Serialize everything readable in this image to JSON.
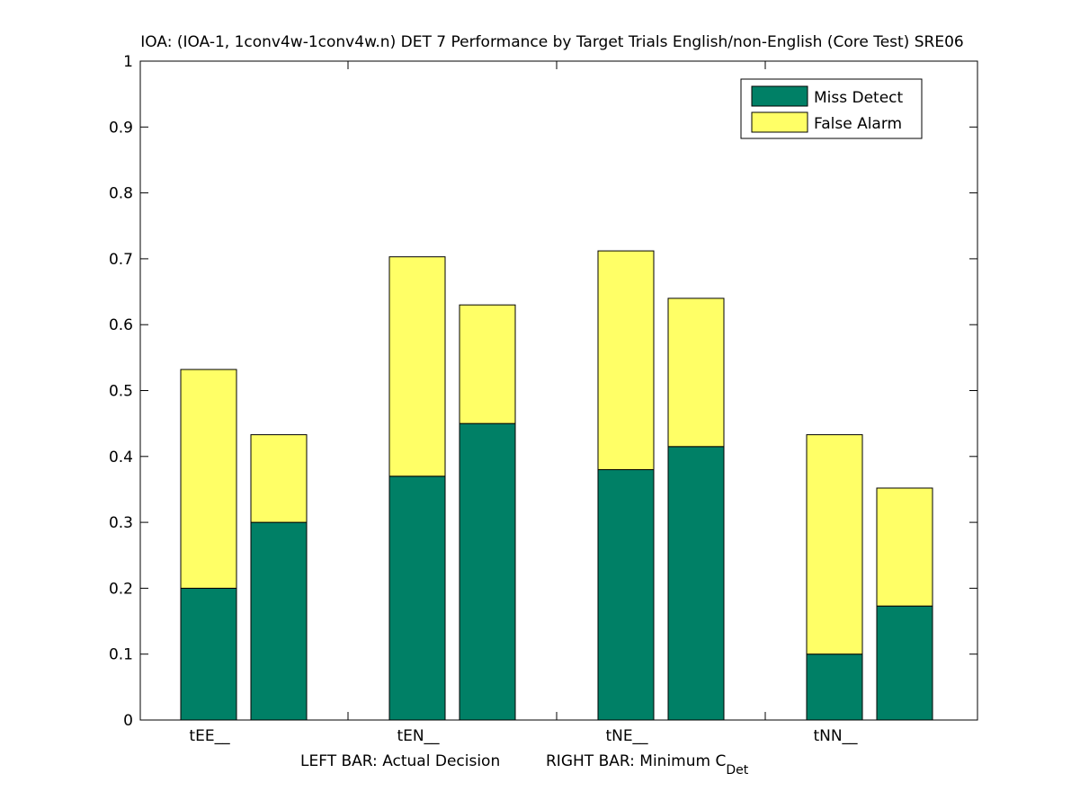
{
  "chart_data": {
    "type": "bar",
    "stacked": true,
    "title": "IOA: (IOA-1, 1conv4w-1conv4w.n) DET 7 Performance by Target Trials English/non-English (Core Test) SRE06",
    "xlabel_left": "LEFT BAR: Actual Decision",
    "xlabel_right_main": "RIGHT BAR: Minimum C",
    "xlabel_right_sub": "Det",
    "categories": [
      "tEE__",
      "tEN__",
      "tNE__",
      "tNN__"
    ],
    "ylim": [
      0,
      1
    ],
    "yticks": [
      "0",
      "0.1",
      "0.2",
      "0.3",
      "0.4",
      "0.5",
      "0.6",
      "0.7",
      "0.8",
      "0.9",
      "1"
    ],
    "legend_position": "top-right",
    "series": [
      {
        "name": "Miss Detect",
        "color": "#008066",
        "actual_decision": [
          0.2,
          0.37,
          0.38,
          0.1
        ],
        "minimum_cdet": [
          0.3,
          0.45,
          0.415,
          0.173
        ]
      },
      {
        "name": "False Alarm",
        "color": "#ffff66",
        "actual_decision": [
          0.332,
          0.333,
          0.332,
          0.333
        ],
        "minimum_cdet": [
          0.133,
          0.18,
          0.225,
          0.179
        ]
      }
    ]
  }
}
